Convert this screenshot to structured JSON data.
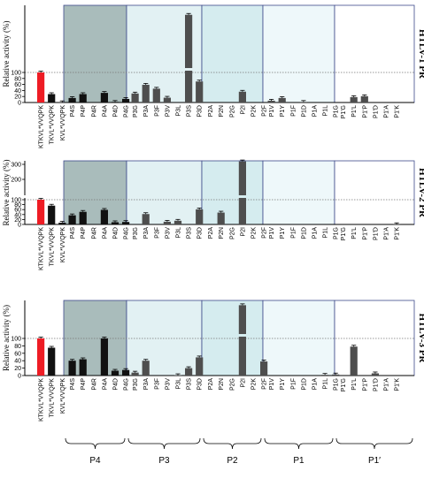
{
  "colors": {
    "P4": "#a9bcbb",
    "P3": "#e2f1f3",
    "P2": "#d5ecef",
    "P1": "#eef8fa",
    "P1p": "#ffffff",
    "region_border": "#3d4a8a",
    "bar_red": "#ee1c24",
    "bar_black": "#111111",
    "bar_grey": "#4e4e4e",
    "ref_line": "#777777"
  },
  "chart_data": {
    "type": "bar",
    "ylabel": "Relative activity (%)",
    "categories": [
      [
        "KTKVL*VVQPK",
        "TKVL*VVQPK",
        "KVL*VVQPK"
      ],
      [
        "P4S",
        "P4P",
        "P4R",
        "P4A",
        "P4D",
        "P4G"
      ],
      [
        "P3G",
        "P3A",
        "P3F",
        "P3V",
        "P3L",
        "P3S",
        "P3D"
      ],
      [
        "P2A",
        "P2N",
        "P2G",
        "P2I",
        "P2K",
        "P2F"
      ],
      [
        "P1V",
        "P1Y",
        "P1F",
        "P1D",
        "P1A",
        "P1L",
        "P1G"
      ],
      [
        "P1'G",
        "P1'L",
        "P1'P",
        "P1'D",
        "P1'A",
        "P1'K"
      ]
    ],
    "group_labels": [
      "P4",
      "P3",
      "P2",
      "P1",
      "P1′"
    ],
    "panels": [
      {
        "title": "HTLV-1 PR",
        "yticks": [
          "0",
          "20",
          "40",
          "60",
          "80",
          "100"
        ],
        "values": [
          100,
          28,
          1,
          15,
          28,
          0,
          32,
          2,
          12,
          30,
          59,
          46,
          16,
          0,
          135,
          70,
          0,
          0,
          0,
          36,
          0,
          0,
          6,
          15,
          0,
          2,
          0,
          0,
          0,
          0,
          18,
          21,
          0,
          0,
          0
        ]
      },
      {
        "title": "HTLV-2 PR",
        "yticks": [
          "0",
          "20",
          "40",
          "60",
          "80",
          "100",
          "200",
          "300"
        ],
        "values": [
          100,
          76,
          7,
          37,
          51,
          0,
          59,
          9,
          10,
          0,
          42,
          0,
          11,
          15,
          0,
          61,
          0,
          48,
          0,
          320,
          0,
          0,
          0,
          0,
          0,
          0,
          0,
          0,
          0,
          0,
          0,
          0,
          0,
          0,
          1
        ]
      },
      {
        "title": "HTLV-3 PR",
        "yticks": [
          "0",
          "20",
          "40",
          "60",
          "80",
          "100"
        ],
        "values": [
          100,
          75,
          0,
          40,
          44,
          0,
          100,
          13,
          15,
          8,
          40,
          0,
          0,
          1,
          20,
          49,
          0,
          0,
          0,
          150,
          0,
          38,
          0,
          0,
          0,
          0,
          0,
          2,
          3,
          0,
          78,
          0,
          6,
          0,
          0
        ]
      }
    ]
  }
}
